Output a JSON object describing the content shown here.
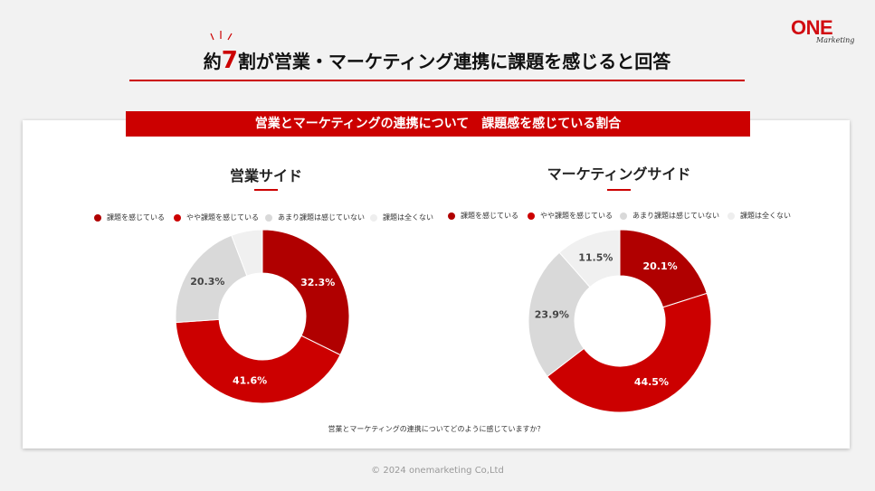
{
  "brand": {
    "logo_text": "ONE",
    "logo_sub": "Marketing"
  },
  "headline": {
    "prefix": "約",
    "number": "7",
    "rest": "割が営業・マーケティング連携に課題を感じると回答"
  },
  "banner": "営業とマーケティングの連携について　課題感を感じている割合",
  "question": "営業とマーケティングの連携についてどのように感じていますか？",
  "footer": "© 2024 onemarketing Co,Ltd",
  "colors": {
    "accent": "#cc0000",
    "dark_red": "#b00000",
    "red": "#cc0000",
    "light_gray": "#d9d9d9",
    "pale_gray": "#f0f0f0"
  },
  "chart_data": [
    {
      "type": "pie",
      "title": "営業サイド",
      "categories": [
        "課題を感じている",
        "やや課題を感じている",
        "あまり課題は感じていない",
        "課題は全くない"
      ],
      "values": [
        32.3,
        41.6,
        20.3,
        5.8
      ],
      "labels": [
        "32.3%",
        "41.6%",
        "20.3%",
        ""
      ],
      "colors": [
        "#b00000",
        "#cc0000",
        "#d9d9d9",
        "#f0f0f0"
      ],
      "label_colors": [
        "#ffffff",
        "#ffffff",
        "#444444",
        "#444444"
      ]
    },
    {
      "type": "pie",
      "title": "マーケティングサイド",
      "categories": [
        "課題を感じている",
        "やや課題を感じている",
        "あまり課題は感じていない",
        "課題は全くない"
      ],
      "values": [
        20.1,
        44.5,
        23.9,
        11.5
      ],
      "labels": [
        "20.1%",
        "44.5%",
        "23.9%",
        "11.5%"
      ],
      "colors": [
        "#b00000",
        "#cc0000",
        "#d9d9d9",
        "#f0f0f0"
      ],
      "label_colors": [
        "#ffffff",
        "#ffffff",
        "#444444",
        "#444444"
      ]
    }
  ]
}
